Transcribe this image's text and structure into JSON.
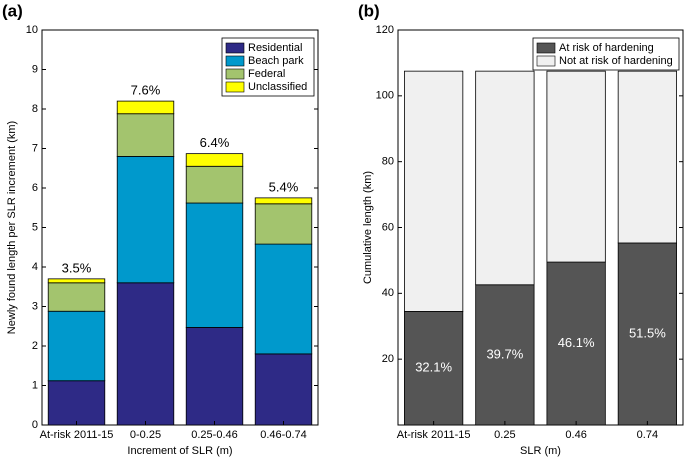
{
  "chart_data": [
    {
      "type": "stacked_bar",
      "panel_label": "(a)",
      "xlabel": "Increment of SLR (m)",
      "ylabel": "Newly found length per SLR increment (km)",
      "categories": [
        "At-risk 2011-15",
        "0-0.25",
        "0.25-0.46",
        "0.46-0.74"
      ],
      "series": [
        {
          "name": "Residential",
          "color": "#2e2a86",
          "values": [
            1.12,
            3.6,
            2.47,
            1.8
          ]
        },
        {
          "name": "Beach park",
          "color": "#0099cc",
          "values": [
            1.76,
            3.2,
            3.15,
            2.78
          ]
        },
        {
          "name": "Federal",
          "color": "#a3c46e",
          "values": [
            0.72,
            1.08,
            0.93,
            1.02
          ]
        },
        {
          "name": "Unclassified",
          "color": "#ffff00",
          "values": [
            0.1,
            0.32,
            0.32,
            0.15
          ]
        }
      ],
      "annotations": [
        "3.5%",
        "7.6%",
        "6.4%",
        "5.4%"
      ],
      "annotation_position": "top",
      "ylim": [
        0,
        10
      ],
      "yticks": [
        0,
        1,
        2,
        3,
        4,
        5,
        6,
        7,
        8,
        9,
        10
      ],
      "legend": "upper right"
    },
    {
      "type": "stacked_bar",
      "panel_label": "(b)",
      "xlabel": "SLR (m)",
      "ylabel": "Cumulative length (km)",
      "categories": [
        "At-risk 2011-15",
        "0.25",
        "0.46",
        "0.74"
      ],
      "series": [
        {
          "name": "At risk of hardening",
          "color": "#555555",
          "values": [
            34.5,
            42.6,
            49.5,
            55.3
          ]
        },
        {
          "name": "Not at risk of hardening",
          "color": "#f0f0f0",
          "values": [
            73,
            64.9,
            58,
            52.2
          ]
        }
      ],
      "annotations": [
        "32.1%",
        "39.7%",
        "46.1%",
        "51.5%"
      ],
      "annotation_position": "inside",
      "ylim": [
        0,
        120
      ],
      "yticks": [
        20,
        40,
        60,
        80,
        100,
        120
      ],
      "legend": "upper right"
    }
  ]
}
